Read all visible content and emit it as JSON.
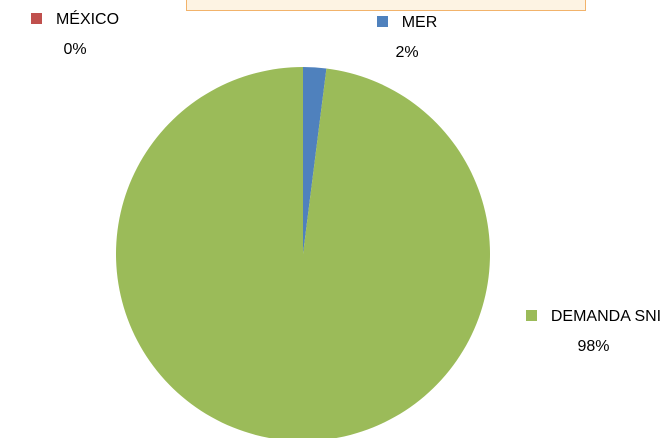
{
  "chart_data": {
    "type": "pie",
    "categories": [
      "MER",
      "MÉXICO",
      "DEMANDA SNI"
    ],
    "values": [
      2,
      0,
      98
    ],
    "value_labels": [
      "2%",
      "0%",
      "98%"
    ],
    "colors": [
      "#4f81bd",
      "#c0504d",
      "#9bbb59"
    ]
  }
}
